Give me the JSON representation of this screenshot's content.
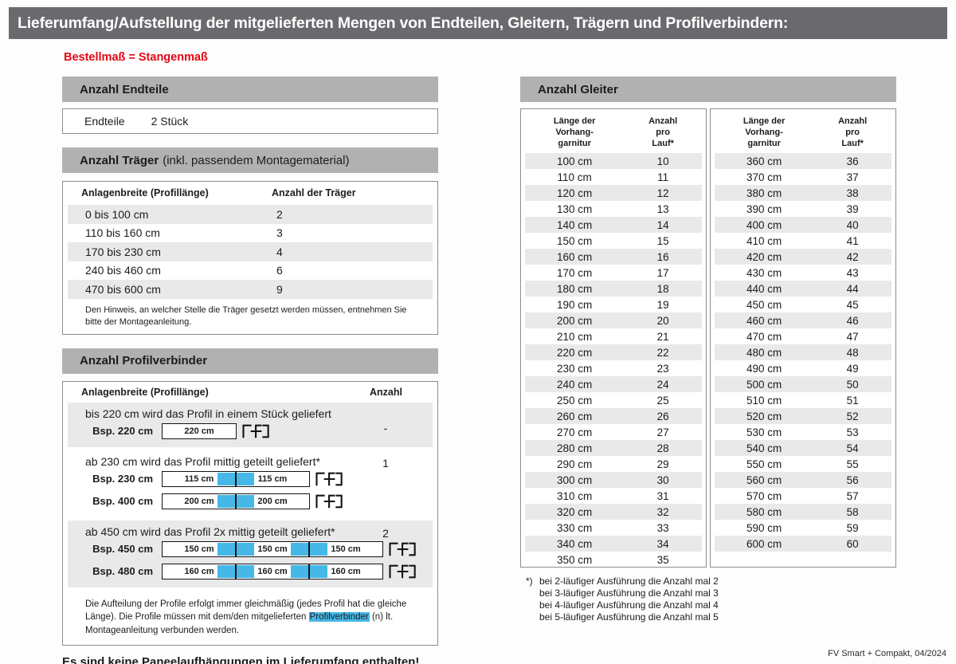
{
  "title_bar": "Lieferumfang/Aufstellung der mitgelieferten Mengen von Endteilen, Gleitern, Trägern und Profilverbindern:",
  "subtitle": "Bestellmaß = Stangenmaß",
  "colors": {
    "title_bar_gray": "#6a696d",
    "section_header_gray": "#b2b1b2",
    "row_stripe_gray": "#e9e9ea",
    "highlight_blue": "#45b8e8",
    "accent_red": "#e30613"
  },
  "endteile": {
    "header": "Anzahl Endteile",
    "label": "Endteile",
    "value": "2 Stück"
  },
  "traeger": {
    "header_bold": "Anzahl Träger",
    "header_normal": "(inkl. passendem Montagematerial)",
    "col1": "Anlagenbreite (Profillänge)",
    "col2": "Anzahl der Träger",
    "rows": [
      {
        "range": "0 bis 100 cm",
        "count": "2"
      },
      {
        "range": "110 bis 160 cm",
        "count": "3"
      },
      {
        "range": "170 bis 230 cm",
        "count": "4"
      },
      {
        "range": "240 bis 460 cm",
        "count": "6"
      },
      {
        "range": "470 bis 600 cm",
        "count": "9"
      }
    ],
    "note": "Den Hinweis, an welcher Stelle die Träger gesetzt werden müssen, entnehmen Sie bitte der Montageanleitung."
  },
  "profilverbinder": {
    "header": "Anzahl Profilverbinder",
    "col1": "Anlagenbreite (Profillänge)",
    "col2": "Anzahl",
    "blocks": [
      {
        "text": "bis 220 cm wird das Profil in einem Stück geliefert",
        "count": "-",
        "diagrams": [
          {
            "label": "Bsp. 220 cm",
            "segments": [
              "220 cm"
            ]
          }
        ]
      },
      {
        "text": "ab 230 cm wird das Profil mittig geteilt geliefert*",
        "count": "1",
        "diagrams": [
          {
            "label": "Bsp. 230 cm",
            "segments": [
              "115 cm",
              "115 cm"
            ]
          },
          {
            "label": "Bsp. 400 cm",
            "segments": [
              "200 cm",
              "200 cm"
            ]
          }
        ]
      },
      {
        "text": "ab 450 cm wird das Profil 2x mittig geteilt geliefert*",
        "count": "2",
        "diagrams": [
          {
            "label": "Bsp. 450 cm",
            "segments": [
              "150 cm",
              "150 cm",
              "150 cm"
            ]
          },
          {
            "label": "Bsp. 480 cm",
            "segments": [
              "160 cm",
              "160 cm",
              "160 cm"
            ]
          }
        ]
      }
    ],
    "note_part1": "Die Aufteilung der Profile erfolgt immer gleichmäßig (jedes Profil hat die gleiche Länge). Die Profile müssen mit dem/den mitgelieferten ",
    "note_highlight": "Profilverbinder",
    "note_part2": " (n) lt. Montageanleitung verbunden werden."
  },
  "panel_note": "Es sind keine Paneelaufhängungen im Lieferumfang enthalten!",
  "gleiter": {
    "header": "Anzahl Gleiter",
    "col1_lines": [
      "Länge der",
      "Vorhang-",
      "garnitur"
    ],
    "col2_lines": [
      "Anzahl",
      "pro",
      "Lauf*"
    ],
    "left_rows": [
      {
        "len": "100 cm",
        "n": "10"
      },
      {
        "len": "110 cm",
        "n": "11"
      },
      {
        "len": "120 cm",
        "n": "12"
      },
      {
        "len": "130 cm",
        "n": "13"
      },
      {
        "len": "140 cm",
        "n": "14"
      },
      {
        "len": "150 cm",
        "n": "15"
      },
      {
        "len": "160 cm",
        "n": "16"
      },
      {
        "len": "170 cm",
        "n": "17"
      },
      {
        "len": "180 cm",
        "n": "18"
      },
      {
        "len": "190 cm",
        "n": "19"
      },
      {
        "len": "200 cm",
        "n": "20"
      },
      {
        "len": "210 cm",
        "n": "21"
      },
      {
        "len": "220 cm",
        "n": "22"
      },
      {
        "len": "230 cm",
        "n": "23"
      },
      {
        "len": "240 cm",
        "n": "24"
      },
      {
        "len": "250 cm",
        "n": "25"
      },
      {
        "len": "260 cm",
        "n": "26"
      },
      {
        "len": "270 cm",
        "n": "27"
      },
      {
        "len": "280 cm",
        "n": "28"
      },
      {
        "len": "290 cm",
        "n": "29"
      },
      {
        "len": "300 cm",
        "n": "30"
      },
      {
        "len": "310 cm",
        "n": "31"
      },
      {
        "len": "320 cm",
        "n": "32"
      },
      {
        "len": "330 cm",
        "n": "33"
      },
      {
        "len": "340 cm",
        "n": "34"
      },
      {
        "len": "350 cm",
        "n": "35"
      }
    ],
    "right_rows": [
      {
        "len": "360 cm",
        "n": "36"
      },
      {
        "len": "370 cm",
        "n": "37"
      },
      {
        "len": "380 cm",
        "n": "38"
      },
      {
        "len": "390 cm",
        "n": "39"
      },
      {
        "len": "400 cm",
        "n": "40"
      },
      {
        "len": "410 cm",
        "n": "41"
      },
      {
        "len": "420 cm",
        "n": "42"
      },
      {
        "len": "430 cm",
        "n": "43"
      },
      {
        "len": "440 cm",
        "n": "44"
      },
      {
        "len": "450 cm",
        "n": "45"
      },
      {
        "len": "460 cm",
        "n": "46"
      },
      {
        "len": "470 cm",
        "n": "47"
      },
      {
        "len": "480 cm",
        "n": "48"
      },
      {
        "len": "490 cm",
        "n": "49"
      },
      {
        "len": "500 cm",
        "n": "50"
      },
      {
        "len": "510 cm",
        "n": "51"
      },
      {
        "len": "520 cm",
        "n": "52"
      },
      {
        "len": "530 cm",
        "n": "53"
      },
      {
        "len": "540 cm",
        "n": "54"
      },
      {
        "len": "550 cm",
        "n": "55"
      },
      {
        "len": "560 cm",
        "n": "56"
      },
      {
        "len": "570 cm",
        "n": "57"
      },
      {
        "len": "580 cm",
        "n": "58"
      },
      {
        "len": "590 cm",
        "n": "59"
      },
      {
        "len": "600 cm",
        "n": "60"
      }
    ],
    "footnote_marker": "*)",
    "footnotes": [
      "bei 2-läufiger Ausführung die Anzahl mal 2",
      "bei 3-läufiger Ausführung die Anzahl mal 3",
      "bei 4-läufiger Ausführung die Anzahl mal 4",
      "bei 5-läufiger Ausführung die Anzahl mal 5"
    ]
  },
  "footer": "FV Smart + Compakt, 04/2024"
}
